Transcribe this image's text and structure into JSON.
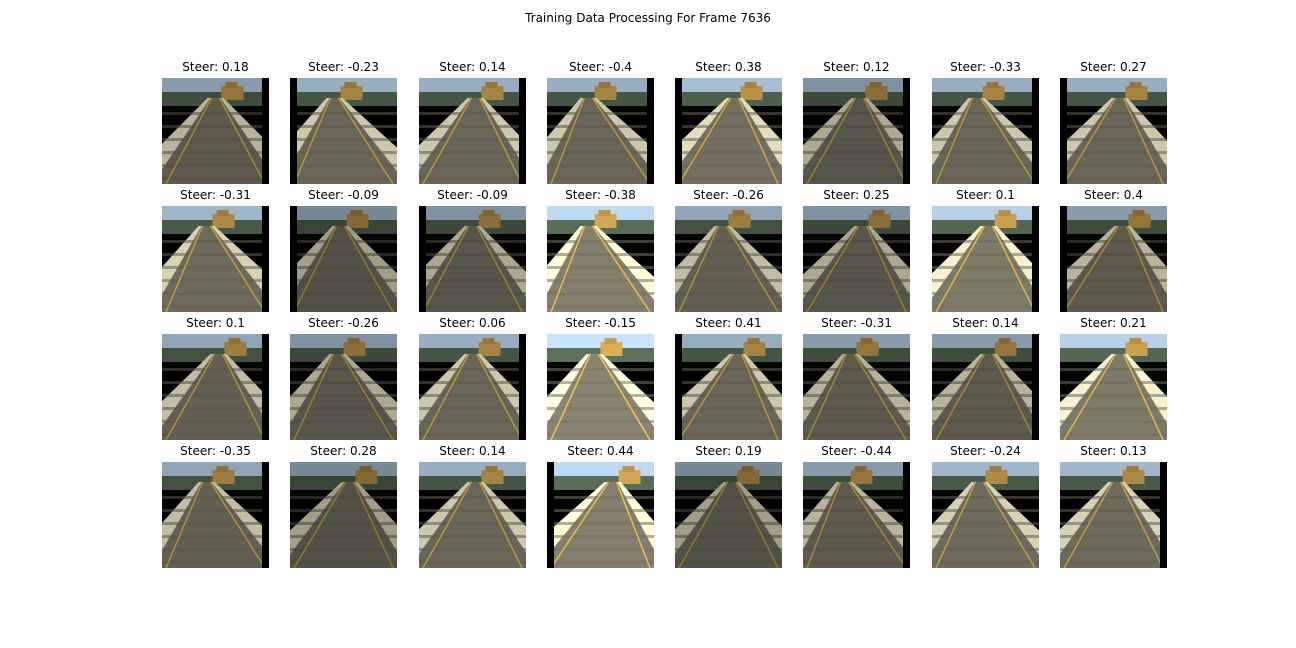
{
  "figure": {
    "title": "Training Data Processing For Frame 7636"
  },
  "label_prefix": "Steer: ",
  "tiles": [
    {
      "steer": "0.18",
      "bar": "right",
      "shift": 0.0,
      "bright": 0.85
    },
    {
      "steer": "-0.23",
      "bar": "left",
      "shift": -0.15,
      "bright": 0.95
    },
    {
      "steer": "0.14",
      "bar": "right",
      "shift": 0.05,
      "bright": 0.95
    },
    {
      "steer": "-0.4",
      "bar": "right",
      "shift": -0.2,
      "bright": 0.95
    },
    {
      "steer": "0.38",
      "bar": "left",
      "shift": 0.1,
      "bright": 1.05
    },
    {
      "steer": "0.12",
      "bar": "right",
      "shift": 0.05,
      "bright": 0.8
    },
    {
      "steer": "-0.33",
      "bar": "right",
      "shift": -0.15,
      "bright": 0.95
    },
    {
      "steer": "0.27",
      "bar": "left",
      "shift": 0.1,
      "bright": 0.95
    },
    {
      "steer": "-0.31",
      "bar": "right",
      "shift": -0.15,
      "bright": 1.0
    },
    {
      "steer": "-0.09",
      "bar": "left",
      "shift": -0.05,
      "bright": 0.75
    },
    {
      "steer": "-0.09",
      "bar": "left",
      "shift": 0.0,
      "bright": 0.8
    },
    {
      "steer": "-0.38",
      "bar": "none",
      "shift": -0.2,
      "bright": 1.2
    },
    {
      "steer": "-0.26",
      "bar": "none",
      "shift": -0.1,
      "bright": 0.9
    },
    {
      "steer": "0.25",
      "bar": "none",
      "shift": 0.1,
      "bright": 0.8
    },
    {
      "steer": "0.1",
      "bar": "right",
      "shift": 0.05,
      "bright": 1.15
    },
    {
      "steer": "0.4",
      "bar": "left",
      "shift": 0.15,
      "bright": 0.85
    },
    {
      "steer": "0.1",
      "bar": "right",
      "shift": 0.05,
      "bright": 0.9
    },
    {
      "steer": "-0.26",
      "bar": "none",
      "shift": -0.1,
      "bright": 0.8
    },
    {
      "steer": "0.06",
      "bar": "right",
      "shift": 0.0,
      "bright": 0.95
    },
    {
      "steer": "-0.15",
      "bar": "none",
      "shift": -0.1,
      "bright": 1.25
    },
    {
      "steer": "0.41",
      "bar": "left",
      "shift": 0.15,
      "bright": 0.95
    },
    {
      "steer": "-0.31",
      "bar": "none",
      "shift": -0.1,
      "bright": 0.85
    },
    {
      "steer": "0.14",
      "bar": "right",
      "shift": 0.05,
      "bright": 0.85
    },
    {
      "steer": "0.21",
      "bar": "none",
      "shift": 0.1,
      "bright": 1.15
    },
    {
      "steer": "-0.35",
      "bar": "right",
      "shift": -0.15,
      "bright": 0.9
    },
    {
      "steer": "0.28",
      "bar": "none",
      "shift": 0.1,
      "bright": 0.75
    },
    {
      "steer": "0.14",
      "bar": "none",
      "shift": 0.05,
      "bright": 0.95
    },
    {
      "steer": "0.44",
      "bar": "left",
      "shift": 0.2,
      "bright": 1.2
    },
    {
      "steer": "0.19",
      "bar": "none",
      "shift": 0.05,
      "bright": 0.75
    },
    {
      "steer": "-0.44",
      "bar": "right",
      "shift": -0.2,
      "bright": 0.85
    },
    {
      "steer": "-0.24",
      "bar": "none",
      "shift": -0.1,
      "bright": 1.0
    },
    {
      "steer": "0.13",
      "bar": "right",
      "shift": 0.05,
      "bright": 1.0
    }
  ],
  "colors": {
    "sky": "#9fb6cc",
    "road": "#6e6a5c",
    "shoulder": "#d8d2b4",
    "line": "#c8a23c",
    "truck": "#b08a44",
    "trees": "#4a5a48"
  }
}
